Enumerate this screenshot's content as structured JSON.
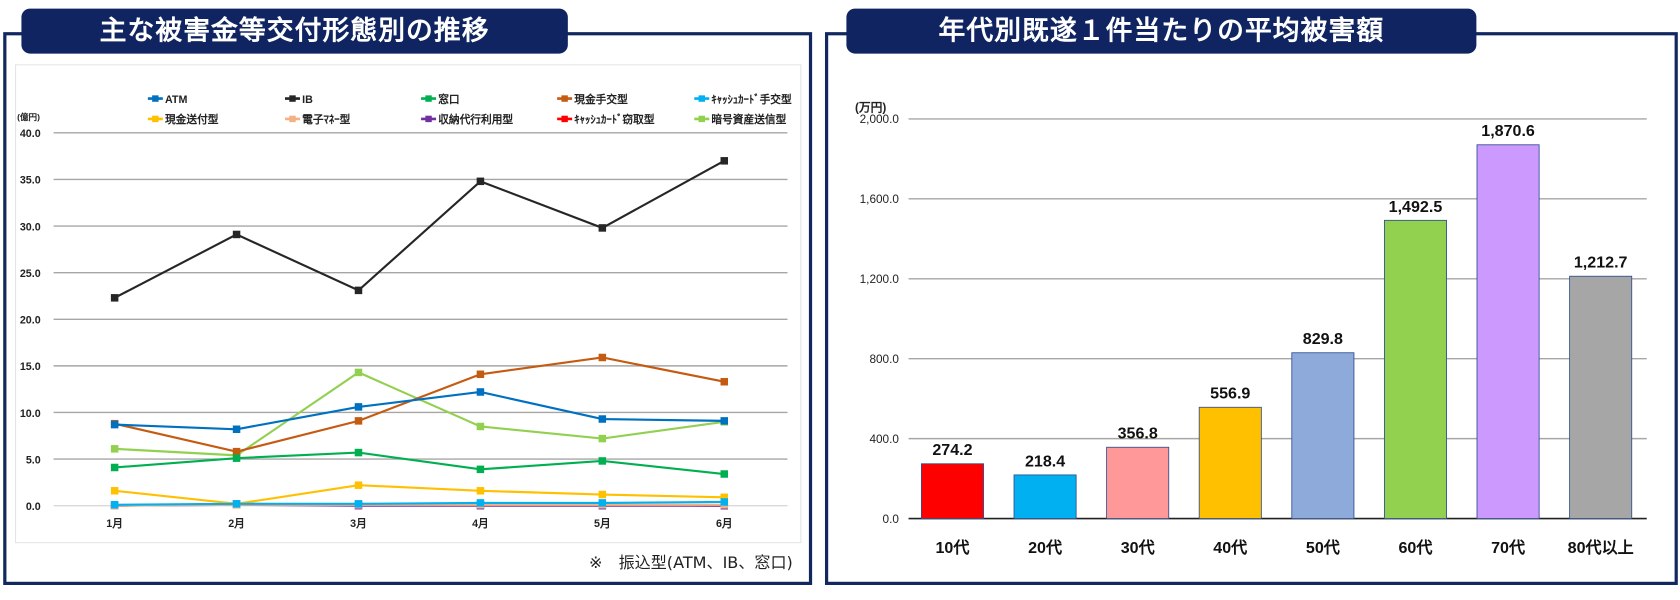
{
  "left": {
    "title": "主な被害金等交付形態別の推移",
    "footnote": "※　振込型(ATM、IB、窓口)"
  },
  "right": {
    "title": "年代別既遂１件当たりの平均被害額"
  },
  "chart_data": [
    {
      "type": "line",
      "ylabel": "(億円)",
      "ylim": [
        0,
        40
      ],
      "yticks": [
        "0.0",
        "5.0",
        "10.0",
        "15.0",
        "20.0",
        "25.0",
        "30.0",
        "35.0",
        "40.0"
      ],
      "ytick_values": [
        0,
        5,
        10,
        15,
        20,
        25,
        30,
        35,
        40
      ],
      "categories": [
        "1月",
        "2月",
        "3月",
        "4月",
        "5月",
        "6月"
      ],
      "grid": true,
      "legend_position": "top",
      "series": [
        {
          "name": "ATM",
          "color": "#0070c0",
          "values": [
            8.7,
            8.2,
            10.6,
            12.2,
            9.3,
            9.1
          ]
        },
        {
          "name": "IB",
          "color": "#262626",
          "values": [
            22.3,
            29.1,
            23.1,
            34.8,
            29.8,
            37.0
          ]
        },
        {
          "name": "窓口",
          "color": "#00b050",
          "values": [
            4.1,
            5.1,
            5.7,
            3.9,
            4.8,
            3.4
          ]
        },
        {
          "name": "現金手交型",
          "color": "#c55a11",
          "values": [
            8.8,
            5.8,
            9.1,
            14.1,
            15.9,
            13.3
          ]
        },
        {
          "name": "ｷｬｯｼｭｶｰﾄﾞ手交型",
          "color": "#00b0f0",
          "values": [
            0.1,
            0.2,
            0.2,
            0.3,
            0.3,
            0.4
          ]
        },
        {
          "name": "現金送付型",
          "color": "#ffc000",
          "values": [
            1.6,
            0.2,
            2.2,
            1.6,
            1.2,
            0.9
          ]
        },
        {
          "name": "電子ﾏﾈｰ型",
          "color": "#f4b183",
          "values": [
            0.0,
            0.1,
            0.1,
            0.1,
            0.1,
            0.1
          ]
        },
        {
          "name": "収納代行利用型",
          "color": "#7030a0",
          "values": [
            0.0,
            0.1,
            0.0,
            0.0,
            0.0,
            0.0
          ]
        },
        {
          "name": "ｷｬｯｼｭｶｰﾄﾞ窃取型",
          "color": "#ff0000",
          "values": [
            0.0,
            0.2,
            0.1,
            0.1,
            0.1,
            0.0
          ]
        },
        {
          "name": "暗号資産送信型",
          "color": "#92d050",
          "values": [
            6.1,
            5.4,
            14.3,
            8.5,
            7.2,
            9.0
          ]
        }
      ]
    },
    {
      "type": "bar",
      "ylabel": "(万円)",
      "ylim": [
        0,
        2000
      ],
      "yticks": [
        "0.0",
        "400.0",
        "800.0",
        "1,200.0",
        "1,600.0",
        "2,000.0"
      ],
      "ytick_values": [
        0,
        400,
        800,
        1200,
        1600,
        2000
      ],
      "categories": [
        "10代",
        "20代",
        "30代",
        "40代",
        "50代",
        "60代",
        "70代",
        "80代以上"
      ],
      "values": [
        274.2,
        218.4,
        356.8,
        556.9,
        829.8,
        1492.5,
        1870.6,
        1212.7
      ],
      "data_labels": [
        "274.2",
        "218.4",
        "356.8",
        "556.9",
        "829.8",
        "1,492.5",
        "1,870.6",
        "1,212.7"
      ],
      "colors": [
        "#ff0000",
        "#00b0f0",
        "#ff9999",
        "#ffc000",
        "#8eaadb",
        "#92d050",
        "#cc99ff",
        "#a6a6a6"
      ],
      "grid": true
    }
  ]
}
